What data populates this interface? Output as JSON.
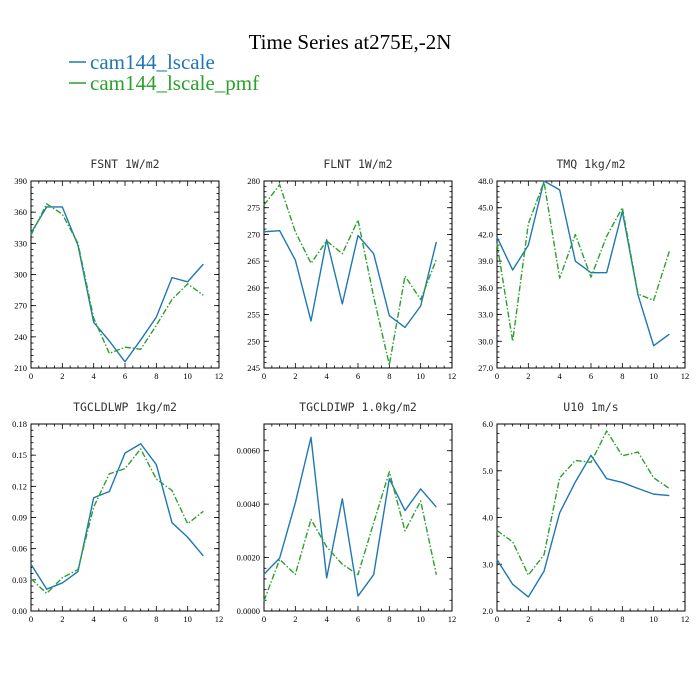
{
  "figure": {
    "title": "Time Series at275E,-2N",
    "legend": [
      {
        "label": "cam144_lscale",
        "color": "#1f77b4",
        "dash": "solid"
      },
      {
        "label": "cam144_lscale_pmf",
        "color": "#2ca02c",
        "dash": "dashdot"
      }
    ]
  },
  "chart_data": [
    {
      "type": "line",
      "title": "FSNT  1W/m2",
      "x": [
        0,
        1,
        2,
        3,
        4,
        5,
        6,
        7,
        8,
        9,
        10,
        11
      ],
      "xlim": [
        0,
        12
      ],
      "xticks": [
        0,
        2,
        4,
        6,
        8,
        10,
        12
      ],
      "ylim": [
        210,
        390
      ],
      "yticks": [
        "210",
        "240",
        "270",
        "300",
        "330",
        "360",
        "390"
      ],
      "series": [
        {
          "name": "cam144_lscale",
          "values": [
            340,
            365,
            365,
            328,
            254,
            236,
            216,
            237,
            259,
            297,
            293,
            310
          ]
        },
        {
          "name": "cam144_lscale_pmf",
          "values": [
            338,
            368,
            358,
            330,
            258,
            224,
            230,
            228,
            251,
            276,
            291,
            280
          ]
        }
      ]
    },
    {
      "type": "line",
      "title": "FLNT  1W/m2",
      "x": [
        0,
        1,
        2,
        3,
        4,
        5,
        6,
        7,
        8,
        9,
        10,
        11
      ],
      "xlim": [
        0,
        12
      ],
      "xticks": [
        0,
        2,
        4,
        6,
        8,
        10,
        12
      ],
      "ylim": [
        245,
        280
      ],
      "yticks": [
        "245",
        "250",
        "255",
        "260",
        "265",
        "270",
        "275",
        "280"
      ],
      "series": [
        {
          "name": "cam144_lscale",
          "values": [
            270.5,
            270.7,
            265.2,
            253.8,
            269.0,
            257.0,
            269.8,
            266.4,
            254.8,
            252.6,
            256.6,
            268.6
          ]
        },
        {
          "name": "cam144_lscale_pmf",
          "values": [
            275.5,
            279.3,
            270.5,
            264.6,
            268.8,
            266.4,
            272.7,
            258.3,
            245.6,
            262.2,
            257.8,
            265.3
          ]
        }
      ]
    },
    {
      "type": "line",
      "title": "TMQ  1kg/m2",
      "x": [
        0,
        1,
        2,
        3,
        4,
        5,
        6,
        7,
        8,
        9,
        10,
        11
      ],
      "xlim": [
        0,
        12
      ],
      "xticks": [
        0,
        2,
        4,
        6,
        8,
        10,
        12
      ],
      "ylim": [
        27.0,
        48.0
      ],
      "yticks": [
        "27.0",
        "30.0",
        "33.0",
        "36.0",
        "39.0",
        "42.0",
        "45.0",
        "48.0"
      ],
      "series": [
        {
          "name": "cam144_lscale",
          "values": [
            41.7,
            38.0,
            40.8,
            48.0,
            47.0,
            39.0,
            37.7,
            37.7,
            44.6,
            35.2,
            29.5,
            30.8
          ]
        },
        {
          "name": "cam144_lscale_pmf",
          "values": [
            41.0,
            30.0,
            43.2,
            47.9,
            37.1,
            42.0,
            37.2,
            41.8,
            45.0,
            35.3,
            34.6,
            40.1
          ]
        }
      ]
    },
    {
      "type": "line",
      "title": "TGCLDLWP  1kg/m2",
      "x": [
        0,
        1,
        2,
        3,
        4,
        5,
        6,
        7,
        8,
        9,
        10,
        11
      ],
      "xlim": [
        0,
        12
      ],
      "xticks": [
        0,
        2,
        4,
        6,
        8,
        10,
        12
      ],
      "ylim": [
        0.0,
        0.18
      ],
      "yticks": [
        "0.00",
        "0.03",
        "0.06",
        "0.09",
        "0.12",
        "0.15",
        "0.18"
      ],
      "series": [
        {
          "name": "cam144_lscale",
          "values": [
            0.045,
            0.021,
            0.027,
            0.038,
            0.109,
            0.115,
            0.152,
            0.161,
            0.141,
            0.085,
            0.071,
            0.053
          ]
        },
        {
          "name": "cam144_lscale_pmf",
          "values": [
            0.031,
            0.017,
            0.032,
            0.04,
            0.1,
            0.132,
            0.137,
            0.156,
            0.127,
            0.116,
            0.084,
            0.096
          ]
        }
      ]
    },
    {
      "type": "line",
      "title": "TGCLDIWP  1.0kg/m2",
      "x": [
        0,
        1,
        2,
        3,
        4,
        5,
        6,
        7,
        8,
        9,
        10,
        11
      ],
      "xlim": [
        0,
        12
      ],
      "xticks": [
        0,
        2,
        4,
        6,
        8,
        10,
        12
      ],
      "ylim": [
        0.0,
        0.007
      ],
      "yticks": [
        "0.0000",
        "0.0020",
        "0.0040",
        "0.0060"
      ],
      "ytick_values": [
        0.0,
        0.002,
        0.004,
        0.006
      ],
      "series": [
        {
          "name": "cam144_lscale",
          "values": [
            0.00138,
            0.00198,
            0.00405,
            0.0065,
            0.00124,
            0.0042,
            0.00056,
            0.00136,
            0.00495,
            0.00376,
            0.00457,
            0.00389
          ]
        },
        {
          "name": "cam144_lscale_pmf",
          "values": [
            0.00038,
            0.00193,
            0.00137,
            0.00343,
            0.0024,
            0.00175,
            0.00136,
            0.0033,
            0.00521,
            0.003,
            0.00412,
            0.00136
          ]
        }
      ]
    },
    {
      "type": "line",
      "title": "U10  1m/s",
      "x": [
        0,
        1,
        2,
        3,
        4,
        5,
        6,
        7,
        8,
        9,
        10,
        11
      ],
      "xlim": [
        0,
        12
      ],
      "xticks": [
        0,
        2,
        4,
        6,
        8,
        10,
        12
      ],
      "ylim": [
        2.0,
        6.0
      ],
      "yticks": [
        "2.0",
        "3.0",
        "4.0",
        "5.0",
        "6.0"
      ],
      "series": [
        {
          "name": "cam144_lscale",
          "values": [
            3.1,
            2.57,
            2.3,
            2.85,
            4.1,
            4.76,
            5.33,
            4.83,
            4.75,
            4.62,
            4.5,
            4.47
          ]
        },
        {
          "name": "cam144_lscale_pmf",
          "values": [
            3.72,
            3.48,
            2.77,
            3.2,
            4.85,
            5.22,
            5.18,
            5.85,
            5.32,
            5.4,
            4.85,
            4.62
          ]
        }
      ]
    }
  ]
}
